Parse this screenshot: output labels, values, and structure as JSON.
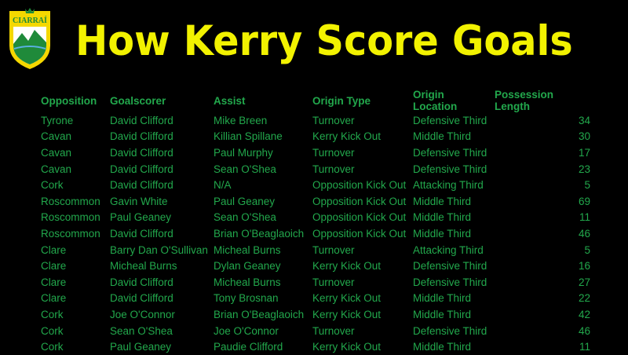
{
  "logo": {
    "text": "CIARRAÍ",
    "colors": {
      "yellow": "#f5d800",
      "green": "#1f8a3a"
    }
  },
  "title": "How Kerry Score Goals",
  "colors": {
    "title": "#f2f200",
    "table_text": "#22a84c",
    "background": "#000000"
  },
  "table": {
    "headers": [
      "Opposition",
      "Goalscorer",
      "Assist",
      "Origin Type",
      "Origin Location",
      "Possession Length"
    ],
    "rows": [
      [
        "Tyrone",
        "David Clifford",
        "Mike Breen",
        "Turnover",
        "Defensive Third",
        "34"
      ],
      [
        "Cavan",
        "David Clifford",
        "Killian Spillane",
        "Kerry Kick Out",
        "Middle Third",
        "30"
      ],
      [
        "Cavan",
        "David Clifford",
        "Paul Murphy",
        "Turnover",
        "Defensive Third",
        "17"
      ],
      [
        "Cavan",
        "David Clifford",
        "Sean O'Shea",
        "Turnover",
        "Defensive Third",
        "23"
      ],
      [
        "Cork",
        "David Clifford",
        "N/A",
        "Opposition Kick Out",
        "Attacking Third",
        "5"
      ],
      [
        "Roscommon",
        "Gavin White",
        "Paul Geaney",
        "Opposition Kick Out",
        "Middle Third",
        "69"
      ],
      [
        "Roscommon",
        "Paul Geaney",
        "Sean O'Shea",
        "Opposition Kick Out",
        "Middle Third",
        "11"
      ],
      [
        "Roscommon",
        "David Clifford",
        "Brian O'Beaglaoich",
        "Opposition Kick Out",
        "Middle Third",
        "46"
      ],
      [
        "Clare",
        "Barry Dan O'Sullivan",
        "Micheal Burns",
        "Turnover",
        "Attacking Third",
        "5"
      ],
      [
        "Clare",
        "Micheal Burns",
        "Dylan Geaney",
        "Kerry Kick Out",
        "Defensive Third",
        "16"
      ],
      [
        "Clare",
        "David Clifford",
        "Micheal Burns",
        "Turnover",
        "Defensive Third",
        "27"
      ],
      [
        "Clare",
        "David Clifford",
        "Tony Brosnan",
        "Kerry Kick Out",
        "Middle Third",
        "22"
      ],
      [
        "Cork",
        "Joe O'Connor",
        "Brian O'Beaglaoich",
        "Kerry Kick Out",
        "Middle Third",
        "42"
      ],
      [
        "Cork",
        "Sean O'Shea",
        "Joe O'Connor",
        "Turnover",
        "Defensive Third",
        "46"
      ],
      [
        "Cork",
        "Paul Geaney",
        "Paudie Clifford",
        "Kerry Kick Out",
        "Middle Third",
        "11"
      ]
    ]
  }
}
